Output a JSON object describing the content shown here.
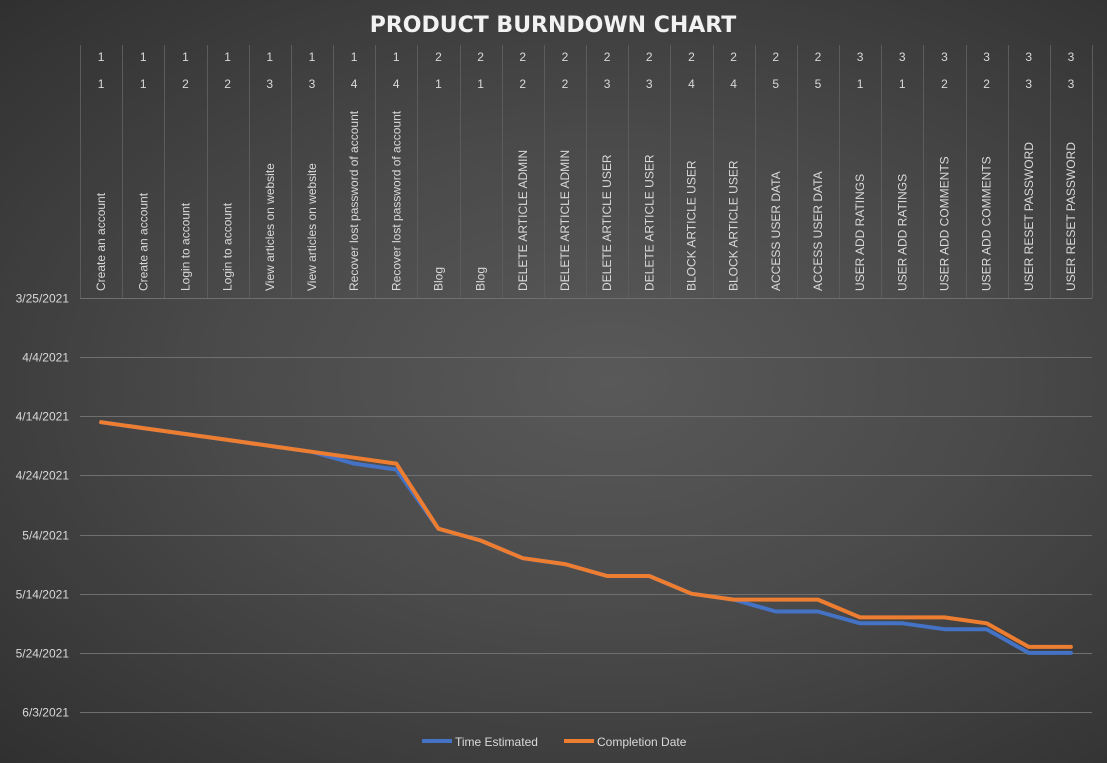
{
  "chart_data": {
    "type": "line",
    "title": "PRODUCT BURNDOWN CHART",
    "xlabel": "",
    "ylabel": "",
    "y_axis": {
      "type": "date",
      "inverted": true,
      "range": [
        "3/25/2021",
        "6/3/2021"
      ],
      "ticks": [
        "3/25/2021",
        "4/4/2021",
        "4/14/2021",
        "4/24/2021",
        "5/4/2021",
        "5/14/2021",
        "5/24/2021",
        "6/3/2021"
      ]
    },
    "categories": [
      {
        "level1": "1",
        "level2": "1",
        "label": "Create an account"
      },
      {
        "level1": "1",
        "level2": "1",
        "label": "Create an account"
      },
      {
        "level1": "1",
        "level2": "2",
        "label": "Login to account"
      },
      {
        "level1": "1",
        "level2": "2",
        "label": "Login to account"
      },
      {
        "level1": "1",
        "level2": "3",
        "label": "View articles on website"
      },
      {
        "level1": "1",
        "level2": "3",
        "label": "View articles on website"
      },
      {
        "level1": "1",
        "level2": "4",
        "label": "Recover lost password of account"
      },
      {
        "level1": "1",
        "level2": "4",
        "label": "Recover lost password of account"
      },
      {
        "level1": "2",
        "level2": "1",
        "label": "Blog"
      },
      {
        "level1": "2",
        "level2": "1",
        "label": "Blog"
      },
      {
        "level1": "2",
        "level2": "2",
        "label": "DELETE ARTICLE ADMIN"
      },
      {
        "level1": "2",
        "level2": "2",
        "label": "DELETE ARTICLE ADMIN"
      },
      {
        "level1": "2",
        "level2": "3",
        "label": "DELETE ARTICLE USER"
      },
      {
        "level1": "2",
        "level2": "3",
        "label": "DELETE ARTICLE USER"
      },
      {
        "level1": "2",
        "level2": "4",
        "label": "BLOCK ARTICLE USER"
      },
      {
        "level1": "2",
        "level2": "4",
        "label": "BLOCK ARTICLE USER"
      },
      {
        "level1": "2",
        "level2": "5",
        "label": "ACCESS USER DATA"
      },
      {
        "level1": "2",
        "level2": "5",
        "label": "ACCESS USER DATA"
      },
      {
        "level1": "3",
        "level2": "1",
        "label": "USER ADD RATINGS"
      },
      {
        "level1": "3",
        "level2": "1",
        "label": "USER ADD RATINGS"
      },
      {
        "level1": "3",
        "level2": "2",
        "label": "USER ADD COMMENTS"
      },
      {
        "level1": "3",
        "level2": "2",
        "label": "USER ADD COMMENTS"
      },
      {
        "level1": "3",
        "level2": "3",
        "label": "USER RESET PASSWORD"
      },
      {
        "level1": "3",
        "level2": "3",
        "label": "USER RESET PASSWORD"
      }
    ],
    "series": [
      {
        "name": "Time Estimated",
        "color": "#4472c4",
        "values": [
          "4/15/2021",
          "4/16/2021",
          "4/17/2021",
          "4/18/2021",
          "4/19/2021",
          "4/20/2021",
          "4/22/2021",
          "4/23/2021",
          "5/3/2021",
          "5/5/2021",
          "5/8/2021",
          "5/9/2021",
          "5/11/2021",
          "5/11/2021",
          "5/14/2021",
          "5/15/2021",
          "5/17/2021",
          "5/17/2021",
          "5/19/2021",
          "5/19/2021",
          "5/20/2021",
          "5/20/2021",
          "5/24/2021",
          "5/24/2021"
        ]
      },
      {
        "name": "Completion Date",
        "color": "#ed7d31",
        "values": [
          "4/15/2021",
          "4/16/2021",
          "4/17/2021",
          "4/18/2021",
          "4/19/2021",
          "4/20/2021",
          "4/21/2021",
          "4/22/2021",
          "5/3/2021",
          "5/5/2021",
          "5/8/2021",
          "5/9/2021",
          "5/11/2021",
          "5/11/2021",
          "5/14/2021",
          "5/15/2021",
          "5/15/2021",
          "5/15/2021",
          "5/18/2021",
          "5/18/2021",
          "5/18/2021",
          "5/19/2021",
          "5/23/2021",
          "5/23/2021"
        ]
      }
    ],
    "grid": true,
    "legend": "bottom"
  }
}
